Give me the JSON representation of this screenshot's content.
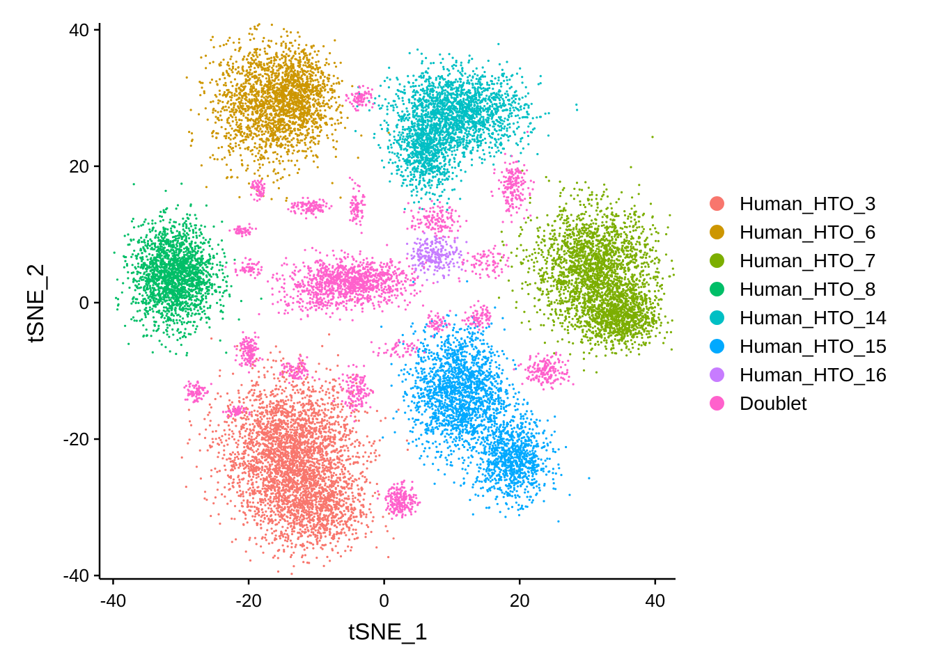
{
  "chart_data": {
    "type": "scatter",
    "xlabel": "tSNE_1",
    "ylabel": "tSNE_2",
    "xlim": [
      -42,
      43
    ],
    "ylim": [
      -40.5,
      41
    ],
    "xticks": [
      -40,
      -20,
      0,
      20,
      40
    ],
    "yticks": [
      -40,
      -20,
      0,
      20,
      40
    ],
    "grid": false,
    "legend_position": "right",
    "series": [
      {
        "name": "Human_HTO_3",
        "color": "#F8766D",
        "n": 3600,
        "clusters": [
          [
            -14,
            -22,
            6.5,
            7,
            0.75
          ],
          [
            -10,
            -30,
            5,
            4.5,
            0.25
          ]
        ]
      },
      {
        "name": "Human_HTO_6",
        "color": "#CD9600",
        "n": 2200,
        "clusters": [
          [
            -17,
            29,
            5.5,
            6,
            0.75
          ],
          [
            -12,
            31,
            3,
            4,
            0.25
          ]
        ]
      },
      {
        "name": "Human_HTO_7",
        "color": "#7CAE00",
        "n": 3000,
        "clusters": [
          [
            31,
            5,
            6,
            6,
            0.7
          ],
          [
            35,
            -2,
            3.5,
            3,
            0.3
          ]
        ]
      },
      {
        "name": "Human_HTO_8",
        "color": "#00BE67",
        "n": 1900,
        "clusters": [
          [
            -31,
            4,
            4,
            5,
            1.0
          ]
        ]
      },
      {
        "name": "Human_HTO_14",
        "color": "#00BFC4",
        "n": 2500,
        "clusters": [
          [
            11,
            28,
            6.5,
            4,
            0.7
          ],
          [
            6,
            22,
            3,
            4,
            0.3
          ]
        ]
      },
      {
        "name": "Human_HTO_15",
        "color": "#00A9FF",
        "n": 2700,
        "clusters": [
          [
            11,
            -13,
            4.5,
            6,
            0.65
          ],
          [
            19,
            -23,
            3.5,
            4,
            0.35
          ]
        ]
      },
      {
        "name": "Human_HTO_16",
        "color": "#C77CFF",
        "n": 230,
        "clusters": [
          [
            7.5,
            7,
            2.5,
            1.8,
            1.0
          ]
        ]
      },
      {
        "name": "Doublet",
        "color": "#FF61CC",
        "n": 2600,
        "clusters": [
          [
            -5,
            3,
            6,
            2.2,
            0.4
          ],
          [
            2.5,
            -29,
            1.5,
            1.5,
            0.08
          ],
          [
            -4,
            -13,
            1.5,
            2,
            0.05
          ],
          [
            -20,
            -7,
            1,
            1.5,
            0.05
          ],
          [
            -28,
            -13,
            1,
            1.2,
            0.03
          ],
          [
            -11,
            14,
            2,
            0.8,
            0.04
          ],
          [
            -4,
            14,
            0.6,
            1.8,
            0.03
          ],
          [
            -3.5,
            30,
            1.2,
            1,
            0.03
          ],
          [
            -21,
            10.5,
            1,
            0.5,
            0.02
          ],
          [
            -20,
            5,
            1.5,
            0.8,
            0.02
          ],
          [
            19,
            17,
            1.5,
            2.5,
            0.07
          ],
          [
            7.5,
            12,
            2.5,
            1.5,
            0.05
          ],
          [
            15,
            6,
            2,
            1.5,
            0.03
          ],
          [
            8,
            -3,
            1.2,
            1,
            0.02
          ],
          [
            14,
            -2,
            1.2,
            1.2,
            0.03
          ],
          [
            24,
            -10,
            2.2,
            1.5,
            0.07
          ],
          [
            -18.5,
            16.5,
            0.7,
            1,
            0.02
          ],
          [
            -13,
            -10,
            1.5,
            1.2,
            0.03
          ],
          [
            -22,
            -16,
            1,
            0.5,
            0.02
          ],
          [
            2,
            -7,
            2,
            1,
            0.02
          ],
          [
            -11,
            0,
            3,
            1.5,
            0.03
          ]
        ]
      }
    ]
  }
}
